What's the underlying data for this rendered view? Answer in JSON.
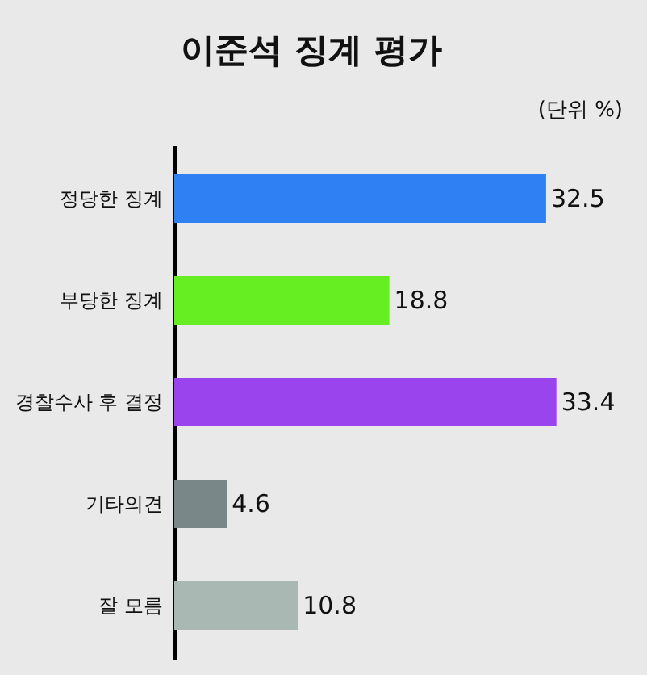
{
  "chart_data": {
    "type": "bar",
    "orientation": "horizontal",
    "title": "이준석 징계 평가",
    "annotations": [
      "(단위 %)"
    ],
    "categories": [
      "정당한 징계",
      "부당한 징계",
      "경찰수사 후 결정",
      "기타의견",
      "잘 모름"
    ],
    "values": [
      32.5,
      18.8,
      33.4,
      4.6,
      10.8
    ],
    "colors": [
      "#2f80f2",
      "#66ee22",
      "#9a44ee",
      "#7a8788",
      "#a9b8b3"
    ],
    "data_labels": true
  }
}
